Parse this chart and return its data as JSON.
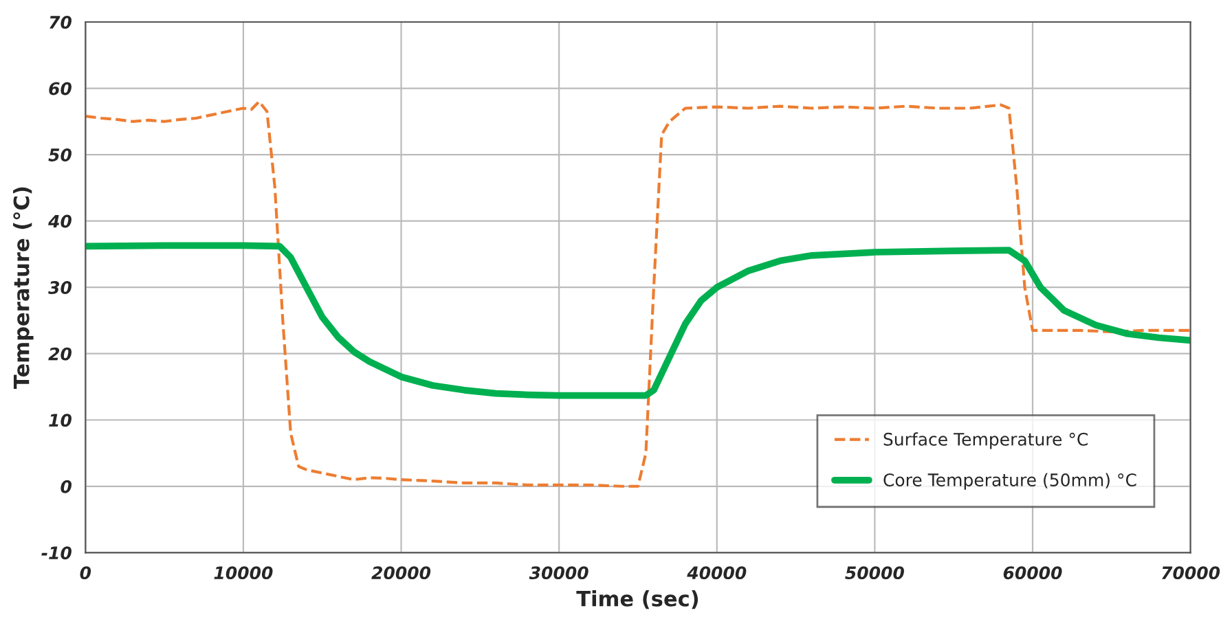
{
  "chart_data": {
    "type": "line",
    "xlabel": "Time (sec)",
    "ylabel": "Temperature (°C)",
    "xlim": [
      0,
      70000
    ],
    "xticks": [
      0,
      10000,
      20000,
      30000,
      40000,
      50000,
      60000,
      70000
    ],
    "ylim": [
      -10,
      70
    ],
    "yticks": [
      -10,
      0,
      10,
      20,
      30,
      40,
      50,
      60,
      70
    ],
    "grid": true,
    "legend": "bottom right",
    "series": [
      {
        "name": "Surface Temperature °C",
        "color": "#ed7d31",
        "line_style": "dashed",
        "x": [
          0,
          1000,
          2000,
          3000,
          4000,
          5000,
          6000,
          7000,
          8000,
          9000,
          10000,
          10500,
          11000,
          11500,
          12000,
          12500,
          13000,
          13500,
          14000,
          15000,
          16000,
          17000,
          18000,
          19000,
          20000,
          22000,
          24000,
          26000,
          28000,
          30000,
          32000,
          34000,
          35000,
          35500,
          36000,
          36500,
          37000,
          38000,
          40000,
          42000,
          44000,
          46000,
          48000,
          50000,
          52000,
          54000,
          56000,
          58000,
          58500,
          59000,
          59500,
          60000,
          61000,
          63000,
          65000,
          67000,
          70000
        ],
        "values": [
          55.8,
          55.5,
          55.3,
          55.0,
          55.2,
          55.0,
          55.3,
          55.5,
          56.0,
          56.5,
          57.0,
          56.8,
          58.0,
          56.5,
          45.0,
          25.0,
          8.0,
          3.0,
          2.5,
          2.0,
          1.5,
          1.0,
          1.3,
          1.2,
          1.0,
          0.8,
          0.5,
          0.5,
          0.2,
          0.2,
          0.2,
          0.0,
          0.0,
          5.0,
          30.0,
          53.0,
          55.0,
          57.0,
          57.2,
          57.0,
          57.3,
          57.0,
          57.2,
          57.0,
          57.3,
          57.0,
          57.0,
          57.5,
          57.0,
          45.0,
          30.0,
          23.5,
          23.5,
          23.5,
          23.3,
          23.5,
          23.5
        ]
      },
      {
        "name": "Core Temperature (50mm) °C",
        "color": "#00b050",
        "line_style": "solid",
        "x": [
          0,
          5000,
          10000,
          12300,
          13000,
          14000,
          15000,
          16000,
          17000,
          18000,
          20000,
          22000,
          24000,
          26000,
          28000,
          30000,
          33000,
          35500,
          36000,
          37000,
          38000,
          39000,
          40000,
          42000,
          44000,
          46000,
          50000,
          55000,
          58500,
          59500,
          60500,
          62000,
          64000,
          66000,
          68000,
          70000
        ],
        "values": [
          36.2,
          36.3,
          36.3,
          36.2,
          34.5,
          30.0,
          25.5,
          22.5,
          20.3,
          18.8,
          16.5,
          15.2,
          14.5,
          14.0,
          13.8,
          13.7,
          13.7,
          13.7,
          14.5,
          19.5,
          24.5,
          28.0,
          30.0,
          32.5,
          34.0,
          34.8,
          35.3,
          35.5,
          35.6,
          34.0,
          30.0,
          26.5,
          24.3,
          23.0,
          22.4,
          22.0
        ]
      }
    ]
  }
}
